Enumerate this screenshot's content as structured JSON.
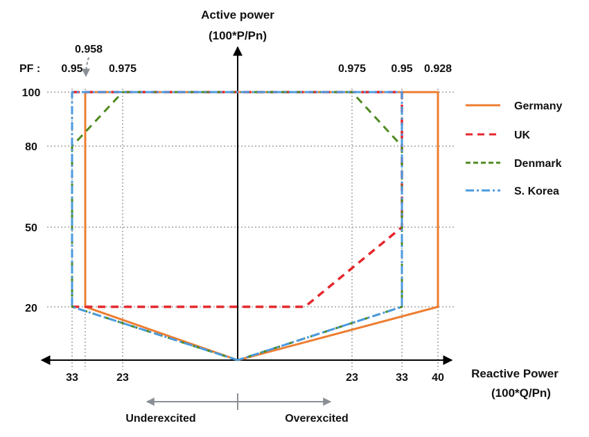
{
  "chart_data": {
    "type": "line",
    "y_axis_title": [
      "Active power",
      "(100*P/Pn)"
    ],
    "x_axis_title": [
      "Reactive Power",
      "(100*Q/Pn)"
    ],
    "pf_prefix": "PF :",
    "pf_labels_left": [
      "0.95",
      "0.958",
      "0.975"
    ],
    "pf_labels_right": [
      "0.975",
      "0.95",
      "0.928"
    ],
    "y_ticks": [
      "100",
      "80",
      "50",
      "20"
    ],
    "x_ticks_left": [
      "33",
      "23"
    ],
    "x_ticks_right": [
      "23",
      "33",
      "40"
    ],
    "regions": {
      "left": "Underexcited",
      "right": "Overexcited"
    },
    "series": [
      {
        "name": "Germany",
        "color": "#ed7d31",
        "dash": "solid",
        "points": [
          [
            0,
            0
          ],
          [
            -30,
            20
          ],
          [
            -30,
            100
          ],
          [
            40,
            100
          ],
          [
            40,
            20
          ],
          [
            0,
            0
          ]
        ]
      },
      {
        "name": "UK",
        "color": "#e5262b",
        "dash": "dash",
        "points": [
          [
            -33,
            100
          ],
          [
            33,
            100
          ],
          [
            33,
            50
          ],
          [
            13,
            20
          ],
          [
            -33,
            20
          ]
        ]
      },
      {
        "name": "Denmark",
        "color": "#4e8a1f",
        "dash": "dash",
        "points": [
          [
            0,
            0
          ],
          [
            -33,
            20
          ],
          [
            -33,
            80
          ],
          [
            -23,
            100
          ],
          [
            23,
            100
          ],
          [
            33,
            80
          ],
          [
            33,
            20
          ],
          [
            0,
            0
          ]
        ]
      },
      {
        "name": "S. Korea",
        "color": "#4a9ae0",
        "dash": "dashdot",
        "points": [
          [
            0,
            0
          ],
          [
            -33,
            20
          ],
          [
            -33,
            100
          ],
          [
            33,
            100
          ],
          [
            33,
            20
          ],
          [
            0,
            0
          ]
        ]
      }
    ]
  }
}
